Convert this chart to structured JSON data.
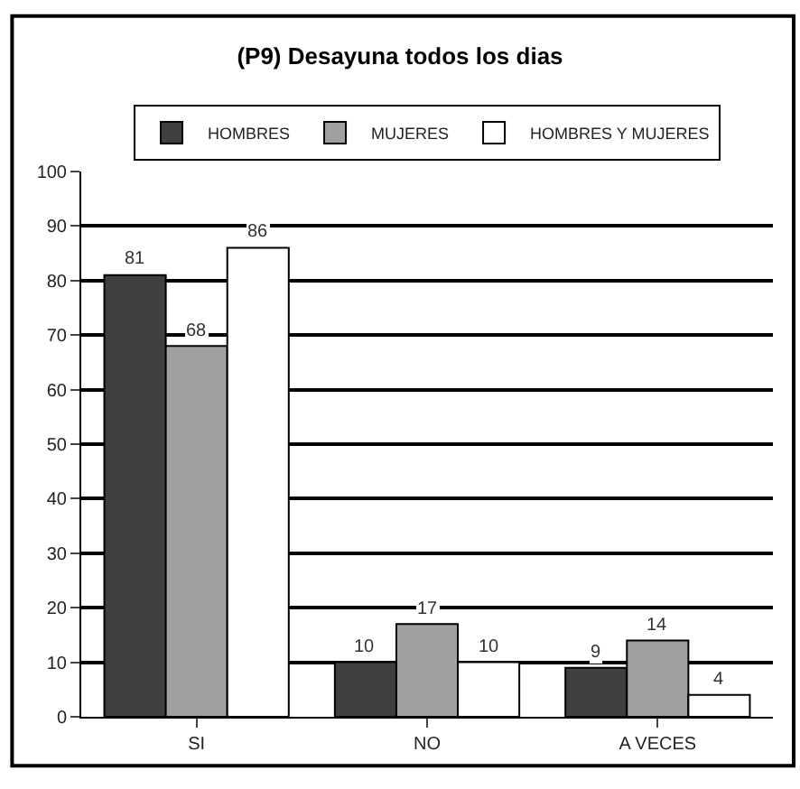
{
  "chart_data": {
    "type": "bar",
    "title": "(P9) Desayuna todos los dias",
    "categories": [
      "SI",
      "NO",
      "A VECES"
    ],
    "series": [
      {
        "name": "HOMBRES",
        "color": "#404040",
        "values": [
          81,
          10,
          9
        ]
      },
      {
        "name": "MUJERES",
        "color": "#a0a0a0",
        "values": [
          68,
          17,
          14
        ]
      },
      {
        "name": "HOMBRES Y MUJERES",
        "color": "#ffffff",
        "values": [
          86,
          10,
          4
        ]
      }
    ],
    "ylim": [
      0,
      100
    ],
    "yticks": [
      0,
      10,
      20,
      30,
      40,
      50,
      60,
      70,
      80,
      90,
      100
    ],
    "grid": "y",
    "legend": "top",
    "data_labels": true
  }
}
